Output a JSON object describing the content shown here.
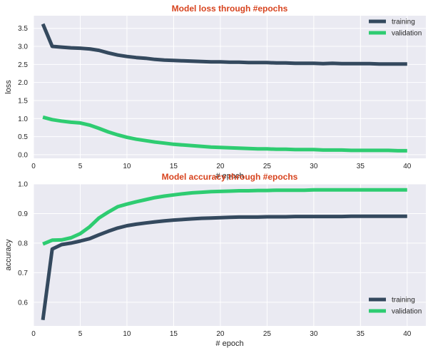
{
  "colors": {
    "title": "#d7431e",
    "training": "#34495e",
    "validation": "#2ecc71",
    "axes_bg": "#eaeaf2",
    "grid": "#ffffff"
  },
  "chart_data": [
    {
      "type": "line",
      "title": "Model loss through #epochs",
      "xlabel": "# epoch",
      "ylabel": "loss",
      "xlim": [
        0,
        42
      ],
      "ylim": [
        -0.1,
        3.85
      ],
      "xticks": [
        0,
        5,
        10,
        15,
        20,
        25,
        30,
        35,
        40
      ],
      "yticks": [
        0.0,
        0.5,
        1.0,
        1.5,
        2.0,
        2.5,
        3.0,
        3.5
      ],
      "ytick_labels": [
        "0.0",
        "0.5",
        "1.0",
        "1.5",
        "2.0",
        "2.5",
        "3.0",
        "3.5"
      ],
      "grid": true,
      "legend": "top-right",
      "x": [
        1,
        2,
        3,
        4,
        5,
        6,
        7,
        8,
        9,
        10,
        11,
        12,
        13,
        14,
        15,
        16,
        17,
        18,
        19,
        20,
        21,
        22,
        23,
        24,
        25,
        26,
        27,
        28,
        29,
        30,
        31,
        32,
        33,
        34,
        35,
        36,
        37,
        38,
        39,
        40
      ],
      "series": [
        {
          "name": "training",
          "color": "#34495e",
          "values": [
            3.62,
            3.0,
            2.98,
            2.96,
            2.95,
            2.93,
            2.89,
            2.82,
            2.76,
            2.72,
            2.69,
            2.67,
            2.64,
            2.62,
            2.61,
            2.6,
            2.59,
            2.58,
            2.57,
            2.57,
            2.56,
            2.56,
            2.55,
            2.55,
            2.55,
            2.54,
            2.54,
            2.53,
            2.53,
            2.53,
            2.52,
            2.53,
            2.52,
            2.52,
            2.52,
            2.52,
            2.51,
            2.51,
            2.51,
            2.51
          ]
        },
        {
          "name": "validation",
          "color": "#2ecc71",
          "values": [
            1.04,
            0.97,
            0.93,
            0.9,
            0.88,
            0.82,
            0.73,
            0.63,
            0.55,
            0.48,
            0.43,
            0.39,
            0.35,
            0.32,
            0.29,
            0.27,
            0.25,
            0.23,
            0.21,
            0.2,
            0.19,
            0.18,
            0.17,
            0.16,
            0.16,
            0.15,
            0.15,
            0.14,
            0.14,
            0.14,
            0.13,
            0.13,
            0.13,
            0.12,
            0.12,
            0.12,
            0.12,
            0.12,
            0.11,
            0.11
          ]
        }
      ]
    },
    {
      "type": "line",
      "title": "Model accuracy through #epochs",
      "xlabel": "# epoch",
      "ylabel": "accuracy",
      "xlim": [
        0,
        42
      ],
      "ylim": [
        0.52,
        1.0
      ],
      "xticks": [
        0,
        5,
        10,
        15,
        20,
        25,
        30,
        35,
        40
      ],
      "yticks": [
        0.6,
        0.7,
        0.8,
        0.9,
        1.0
      ],
      "ytick_labels": [
        "0.6",
        "0.7",
        "0.8",
        "0.9",
        "1.0"
      ],
      "grid": true,
      "legend": "bottom-right",
      "x": [
        1,
        2,
        3,
        4,
        5,
        6,
        7,
        8,
        9,
        10,
        11,
        12,
        13,
        14,
        15,
        16,
        17,
        18,
        19,
        20,
        21,
        22,
        23,
        24,
        25,
        26,
        27,
        28,
        29,
        30,
        31,
        32,
        33,
        34,
        35,
        36,
        37,
        38,
        39,
        40
      ],
      "series": [
        {
          "name": "training",
          "color": "#34495e",
          "values": [
            0.54,
            0.78,
            0.795,
            0.8,
            0.807,
            0.815,
            0.828,
            0.84,
            0.851,
            0.859,
            0.864,
            0.868,
            0.872,
            0.875,
            0.878,
            0.88,
            0.882,
            0.884,
            0.885,
            0.886,
            0.887,
            0.888,
            0.888,
            0.888,
            0.889,
            0.889,
            0.889,
            0.89,
            0.89,
            0.89,
            0.89,
            0.89,
            0.89,
            0.891,
            0.891,
            0.891,
            0.891,
            0.891,
            0.891,
            0.891
          ]
        },
        {
          "name": "validation",
          "color": "#2ecc71",
          "values": [
            0.797,
            0.81,
            0.811,
            0.818,
            0.832,
            0.855,
            0.885,
            0.905,
            0.923,
            0.932,
            0.94,
            0.947,
            0.954,
            0.959,
            0.963,
            0.967,
            0.97,
            0.972,
            0.974,
            0.975,
            0.976,
            0.977,
            0.977,
            0.978,
            0.978,
            0.979,
            0.979,
            0.979,
            0.979,
            0.98,
            0.98,
            0.98,
            0.98,
            0.98,
            0.98,
            0.98,
            0.98,
            0.98,
            0.98,
            0.98
          ]
        }
      ]
    }
  ]
}
